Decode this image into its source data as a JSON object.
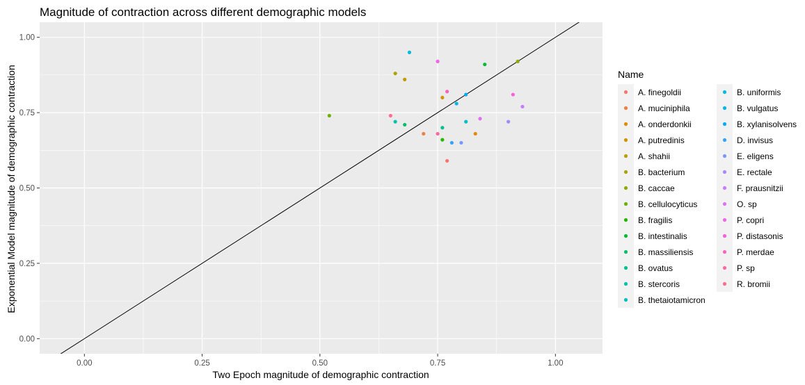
{
  "chart_data": {
    "type": "scatter",
    "title": "Magnitude of contraction across different demographic models",
    "xlabel": "Two Epoch magnitude of demographic contraction",
    "ylabel": "Exponential Model magnitude of demographic contraction",
    "xlim": [
      -0.095,
      1.1
    ],
    "ylim": [
      -0.05,
      1.05
    ],
    "xticks": [
      0.0,
      0.25,
      0.5,
      0.75,
      1.0
    ],
    "xtick_labels": [
      "0.00",
      "0.25",
      "0.50",
      "0.75",
      "1.00"
    ],
    "yticks": [
      0.0,
      0.25,
      0.5,
      0.75,
      1.0
    ],
    "ytick_labels": [
      "0.00",
      "0.25",
      "0.50",
      "0.75",
      "1.00"
    ],
    "grid": true,
    "reference_line": "y = x",
    "legend_title": "Name",
    "legend_position": "right",
    "series": [
      {
        "name": "A. finegoldii",
        "color": "#F8766D",
        "x": 0.77,
        "y": 0.59
      },
      {
        "name": "A. muciniphila",
        "color": "#EE8043",
        "x": 0.72,
        "y": 0.68
      },
      {
        "name": "A. onderdonkii",
        "color": "#E18A00",
        "x": 0.83,
        "y": 0.68
      },
      {
        "name": "A. putredinis",
        "color": "#D19200",
        "x": 0.76,
        "y": 0.8
      },
      {
        "name": "A. shahii",
        "color": "#BE9C00",
        "x": 0.68,
        "y": 0.86
      },
      {
        "name": "B. bacterium",
        "color": "#A8A400",
        "x": 0.66,
        "y": 0.88
      },
      {
        "name": "B. caccae",
        "color": "#8EAB00",
        "x": 0.92,
        "y": 0.92
      },
      {
        "name": "B. cellulocyticus",
        "color": "#6BB100",
        "x": 0.52,
        "y": 0.74
      },
      {
        "name": "B. fragilis",
        "color": "#24B700",
        "x": 0.76,
        "y": 0.66
      },
      {
        "name": "B. intestinalis",
        "color": "#00BA38",
        "x": 0.85,
        "y": 0.91
      },
      {
        "name": "B. massiliensis",
        "color": "#00BE6C",
        "x": 0.68,
        "y": 0.71
      },
      {
        "name": "B. ovatus",
        "color": "#00C08E",
        "x": 0.76,
        "y": 0.7
      },
      {
        "name": "B. stercoris",
        "color": "#00C1AB",
        "x": 0.66,
        "y": 0.72
      },
      {
        "name": "B. thetaiotamicron",
        "color": "#00BFC4",
        "x": 0.81,
        "y": 0.72
      },
      {
        "name": "B. uniformis",
        "color": "#00BBDB",
        "x": 0.69,
        "y": 0.95
      },
      {
        "name": "B. vulgatus",
        "color": "#00B6EB",
        "x": 0.79,
        "y": 0.78
      },
      {
        "name": "B. xylanisolvens",
        "color": "#00ABFD",
        "x": 0.81,
        "y": 0.81
      },
      {
        "name": "D. invisus",
        "color": "#35A2FF",
        "x": 0.78,
        "y": 0.65
      },
      {
        "name": "E. eligens",
        "color": "#7997FF",
        "x": 0.8,
        "y": 0.65
      },
      {
        "name": "E. rectale",
        "color": "#A58AFF",
        "x": 0.9,
        "y": 0.72
      },
      {
        "name": "F. prausnitzii",
        "color": "#C77CFF",
        "x": 0.93,
        "y": 0.77
      },
      {
        "name": "O. sp",
        "color": "#DF70F8",
        "x": 0.84,
        "y": 0.73
      },
      {
        "name": "P. copri",
        "color": "#F066EA",
        "x": 0.75,
        "y": 0.92
      },
      {
        "name": "P. distasonis",
        "color": "#FB61D7",
        "x": 0.91,
        "y": 0.81
      },
      {
        "name": "P. merdae",
        "color": "#FF62BC",
        "x": 0.77,
        "y": 0.82
      },
      {
        "name": "P. sp",
        "color": "#FF689E",
        "x": 0.75,
        "y": 0.68
      },
      {
        "name": "R. bromii",
        "color": "#FF6C91",
        "x": 0.65,
        "y": 0.74
      }
    ]
  }
}
